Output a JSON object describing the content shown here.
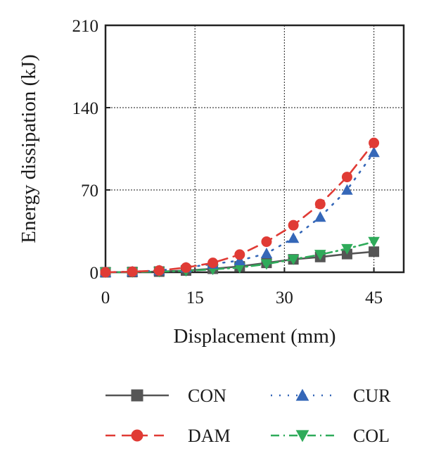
{
  "chart_data": {
    "type": "line",
    "title": "",
    "xlabel": "Displacement (mm)",
    "ylabel": "Energy dissipation (kJ)",
    "xlim": [
      0,
      50
    ],
    "ylim": [
      0,
      210
    ],
    "xticks": [
      0,
      15,
      30,
      45
    ],
    "yticks": [
      0,
      70,
      140,
      210
    ],
    "grid": true,
    "legend_position": "bottom",
    "series": [
      {
        "name": "CON",
        "color": "#555555",
        "marker": "square",
        "line_style": "solid",
        "x": [
          0,
          4.5,
          9,
          13.5,
          18,
          22.5,
          27,
          31.5,
          36,
          40.5,
          45
        ],
        "y": [
          0,
          0.2,
          0.6,
          1.5,
          3,
          5,
          8,
          11,
          13,
          15.5,
          17.5
        ]
      },
      {
        "name": "CUR",
        "color": "#3567b8",
        "marker": "triangle-up",
        "line_style": "dotted",
        "x": [
          0,
          4.5,
          9,
          13.5,
          18,
          22.5,
          27,
          31.5,
          36,
          40.5,
          45
        ],
        "y": [
          0,
          0.5,
          1.5,
          4,
          7,
          10,
          16,
          29,
          47,
          70,
          102
        ]
      },
      {
        "name": "DAM",
        "color": "#e03b35",
        "marker": "circle",
        "line_style": "dashed",
        "x": [
          0,
          4.5,
          9,
          13.5,
          18,
          22.5,
          27,
          31.5,
          36,
          40.5,
          45
        ],
        "y": [
          0,
          0.5,
          1.5,
          4,
          8,
          15,
          26,
          40,
          58,
          81,
          110
        ]
      },
      {
        "name": "COL",
        "color": "#2fab5a",
        "marker": "triangle-down",
        "line_style": "dashdot",
        "x": [
          0,
          4.5,
          9,
          13.5,
          18,
          22.5,
          27,
          31.5,
          36,
          40.5,
          45
        ],
        "y": [
          0,
          0.2,
          0.5,
          1.2,
          2.5,
          4,
          7,
          11,
          15,
          20,
          26
        ]
      }
    ]
  }
}
